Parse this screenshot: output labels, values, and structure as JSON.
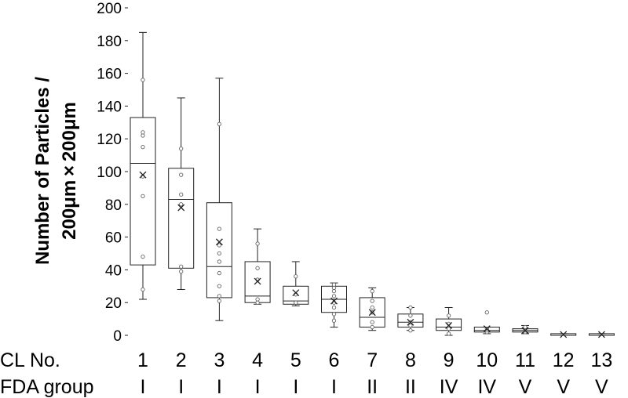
{
  "chart_data": {
    "type": "box",
    "ylabel_line1": "Number of Particles /",
    "ylabel_line2": "200μm × 200μm",
    "ylim": [
      0,
      200
    ],
    "yticks": [
      0,
      20,
      40,
      60,
      80,
      100,
      120,
      140,
      160,
      180,
      200
    ],
    "row_labels": {
      "cl": "CL No.",
      "fda": "FDA group"
    },
    "categories": [
      "1",
      "2",
      "3",
      "4",
      "5",
      "6",
      "7",
      "8",
      "9",
      "10",
      "11",
      "12",
      "13"
    ],
    "fda_groups": [
      "I",
      "I",
      "I",
      "I",
      "I",
      "I",
      "II",
      "II",
      "IV",
      "IV",
      "V",
      "V",
      "V"
    ],
    "boxes": [
      {
        "min": 22,
        "q1": 43,
        "median": 105,
        "q3": 133,
        "max": 185,
        "mean": 98,
        "points": [
          28,
          48,
          85,
          97,
          115,
          122,
          124,
          156
        ]
      },
      {
        "min": 28,
        "q1": 41,
        "median": 83,
        "q3": 102,
        "max": 145,
        "mean": 78,
        "points": [
          39,
          42,
          80,
          86,
          98,
          114
        ]
      },
      {
        "min": 9,
        "q1": 23,
        "median": 42,
        "q3": 81,
        "max": 157,
        "mean": 57,
        "points": [
          21,
          24,
          30,
          38,
          45,
          50,
          55,
          65,
          129
        ]
      },
      {
        "min": 19,
        "q1": 20,
        "median": 24,
        "q3": 45,
        "max": 65,
        "mean": 33,
        "points": [
          20,
          22,
          34,
          41,
          56
        ]
      },
      {
        "min": 18,
        "q1": 19,
        "median": 21,
        "q3": 30,
        "max": 45,
        "mean": 26,
        "points": [
          20,
          25,
          36
        ]
      },
      {
        "min": 5,
        "q1": 14,
        "median": 22,
        "q3": 30,
        "max": 32,
        "mean": 21,
        "points": [
          9,
          13,
          17,
          20,
          24,
          27,
          29,
          31
        ]
      },
      {
        "min": 3,
        "q1": 5,
        "median": 11,
        "q3": 23,
        "max": 29,
        "mean": 14,
        "points": [
          5,
          8,
          14,
          17,
          21,
          27
        ]
      },
      {
        "min": 3,
        "q1": 5,
        "median": 8,
        "q3": 13,
        "max": 17,
        "mean": 8,
        "points": [
          3,
          6,
          8,
          12,
          17
        ]
      },
      {
        "min": 0,
        "q1": 3,
        "median": 5,
        "q3": 10,
        "max": 17,
        "mean": 6,
        "points": [
          1,
          4,
          7,
          12
        ]
      },
      {
        "min": 1,
        "q1": 2,
        "median": 3,
        "q3": 5,
        "max": 5,
        "mean": 4,
        "points": [
          2,
          3,
          4,
          14
        ]
      },
      {
        "min": 1,
        "q1": 2,
        "median": 3,
        "q3": 4,
        "max": 6,
        "mean": 3,
        "points": [
          2,
          3,
          4,
          5
        ]
      },
      {
        "min": 0,
        "q1": 0,
        "median": 0,
        "q3": 1,
        "max": 1,
        "mean": 0.5,
        "points": []
      },
      {
        "min": 0,
        "q1": 0,
        "median": 0,
        "q3": 1,
        "max": 1,
        "mean": 0.5,
        "points": []
      }
    ],
    "legend": null,
    "grid": false,
    "colors": {
      "line": "#222222",
      "point": "#666666"
    }
  }
}
